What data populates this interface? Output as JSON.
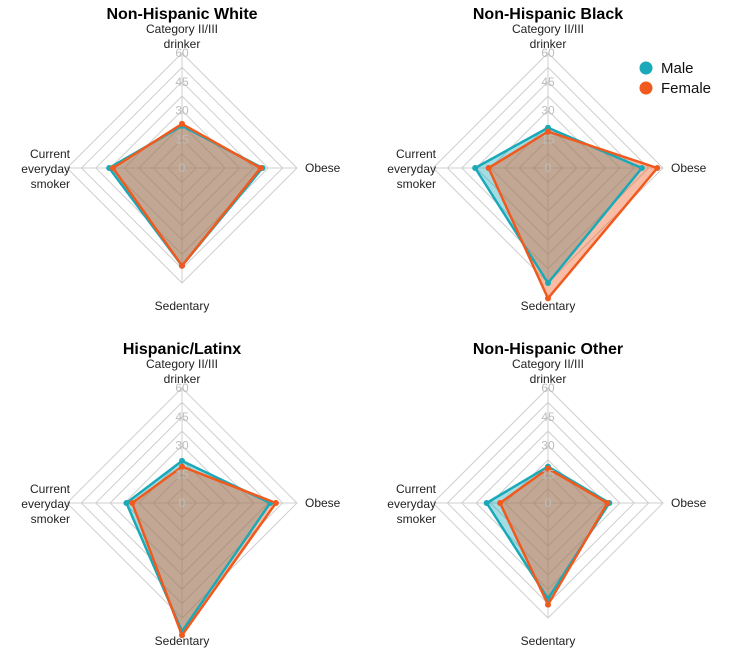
{
  "chart_data": {
    "type": "radar",
    "axes": [
      "Category II/III drinker",
      "Obese",
      "Sedentary",
      "Current everyday smoker"
    ],
    "axis_label_lines": [
      [
        "Category II/III",
        "drinker"
      ],
      [
        "Obese"
      ],
      [
        "Sedentary"
      ],
      [
        "Current",
        "everyday",
        "smoker"
      ]
    ],
    "radial_ticks": [
      "0",
      "15",
      "30",
      "45",
      "60"
    ],
    "rlim": [
      0,
      60
    ],
    "legend": {
      "placement": "top-right",
      "entries": [
        {
          "label": "Male",
          "color": "#1aa9b8"
        },
        {
          "label": "Female",
          "color": "#f05a1e"
        }
      ]
    },
    "panels": [
      {
        "title": "Non-Hispanic White",
        "series": [
          {
            "name": "Male",
            "values": [
              22,
              42,
              51,
              38
            ]
          },
          {
            "name": "Female",
            "values": [
              23,
              41,
              51,
              36
            ]
          }
        ]
      },
      {
        "title": "Non-Hispanic Black",
        "series": [
          {
            "name": "Male",
            "values": [
              21,
              49,
              60,
              38
            ]
          },
          {
            "name": "Female",
            "values": [
              19,
              57,
              68,
              31
            ]
          }
        ]
      },
      {
        "title": "Hispanic/Latinx",
        "series": [
          {
            "name": "Male",
            "values": [
              22,
              46,
              67,
              29
            ]
          },
          {
            "name": "Female",
            "values": [
              19,
              49,
              69,
              26
            ]
          }
        ]
      },
      {
        "title": "Non-Hispanic Other",
        "series": [
          {
            "name": "Male",
            "values": [
              19,
              32,
              50,
              32
            ]
          },
          {
            "name": "Female",
            "values": [
              18,
              31,
              53,
              25
            ]
          }
        ]
      }
    ]
  }
}
